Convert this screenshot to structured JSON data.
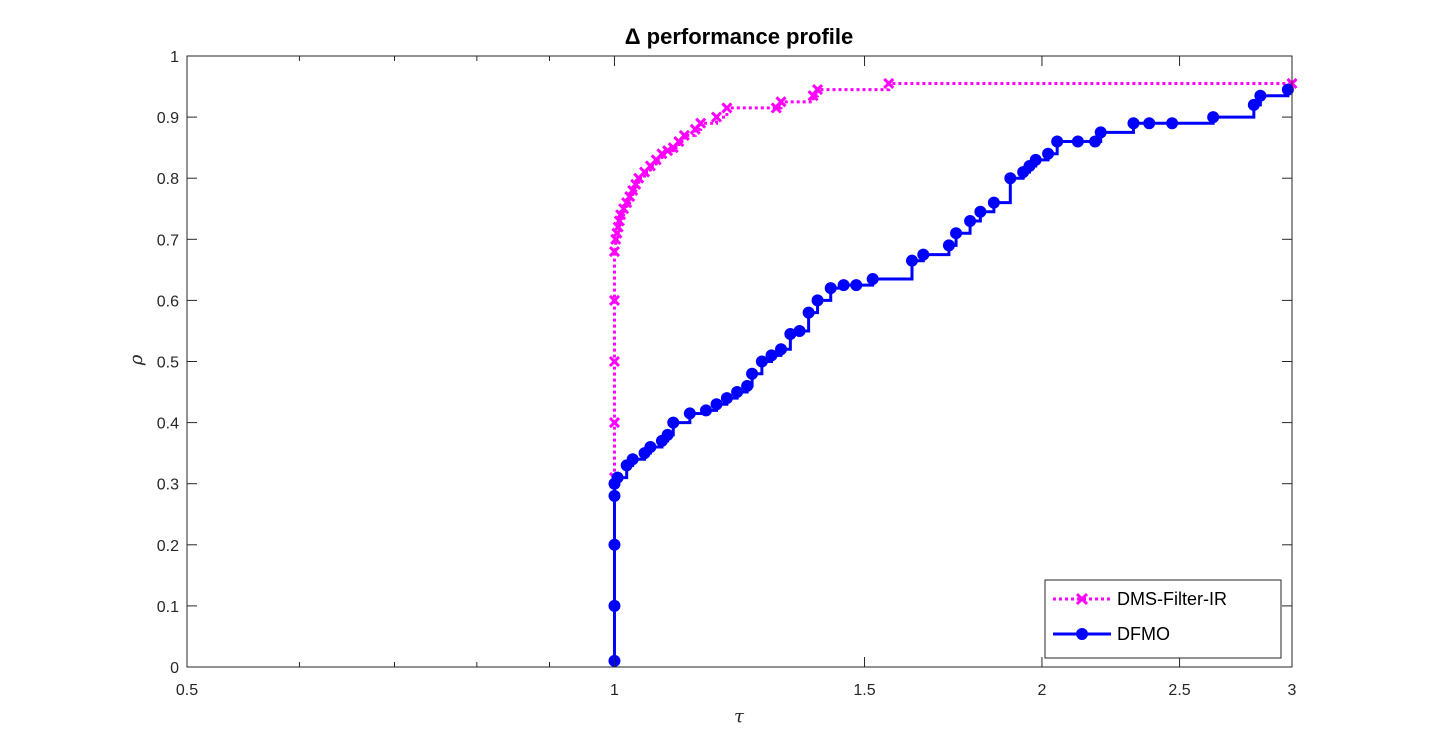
{
  "chart_data": {
    "type": "line",
    "title": "Δ performance profile",
    "xlabel": "τ",
    "ylabel": "ρ",
    "x_scale": "log2",
    "xlim": [
      0.5,
      3
    ],
    "ylim": [
      0,
      1
    ],
    "x_ticks": [
      0.5,
      1,
      1.5,
      2,
      2.5,
      3
    ],
    "x_tick_labels": [
      "0.5",
      "1",
      "1.5",
      "2",
      "2.5",
      "3"
    ],
    "y_ticks": [
      0,
      0.1,
      0.2,
      0.3,
      0.4,
      0.5,
      0.6,
      0.7,
      0.8,
      0.9,
      1
    ],
    "y_tick_labels": [
      "0",
      "0.1",
      "0.2",
      "0.3",
      "0.4",
      "0.5",
      "0.6",
      "0.7",
      "0.8",
      "0.9",
      "1"
    ],
    "grid": false,
    "legend_position": "bottom-right",
    "series": [
      {
        "name": "DMS-Filter-IR",
        "color": "#ff00ff",
        "line_style": "dotted",
        "marker": "x",
        "x": [
          1.0,
          1.0,
          1.0,
          1.0,
          1.0,
          1.002,
          1.004,
          1.006,
          1.008,
          1.01,
          1.015,
          1.02,
          1.025,
          1.03,
          1.035,
          1.04,
          1.05,
          1.06,
          1.07,
          1.08,
          1.09,
          1.1,
          1.11,
          1.12,
          1.14,
          1.15,
          1.18,
          1.2,
          1.3,
          1.31,
          1.38,
          1.39,
          1.56,
          3.0
        ],
        "y": [
          0.31,
          0.4,
          0.5,
          0.6,
          0.68,
          0.7,
          0.71,
          0.72,
          0.73,
          0.74,
          0.75,
          0.76,
          0.77,
          0.78,
          0.79,
          0.8,
          0.81,
          0.82,
          0.83,
          0.84,
          0.845,
          0.85,
          0.86,
          0.87,
          0.88,
          0.89,
          0.9,
          0.915,
          0.915,
          0.925,
          0.935,
          0.945,
          0.955,
          0.955
        ]
      },
      {
        "name": "DFMO",
        "color": "#0000ff",
        "line_style": "solid",
        "marker": "o",
        "x": [
          1.0,
          1.0,
          1.0,
          1.0,
          1.0,
          1.005,
          1.02,
          1.03,
          1.05,
          1.06,
          1.08,
          1.09,
          1.1,
          1.13,
          1.16,
          1.18,
          1.2,
          1.22,
          1.24,
          1.25,
          1.27,
          1.29,
          1.31,
          1.33,
          1.35,
          1.37,
          1.39,
          1.42,
          1.45,
          1.48,
          1.52,
          1.62,
          1.65,
          1.72,
          1.74,
          1.78,
          1.81,
          1.85,
          1.9,
          1.94,
          1.96,
          1.98,
          2.02,
          2.05,
          2.12,
          2.18,
          2.2,
          2.32,
          2.38,
          2.47,
          2.64,
          2.82,
          2.85,
          2.98
        ],
        "y": [
          0.01,
          0.1,
          0.2,
          0.28,
          0.3,
          0.31,
          0.33,
          0.34,
          0.35,
          0.36,
          0.37,
          0.38,
          0.4,
          0.415,
          0.42,
          0.43,
          0.44,
          0.45,
          0.46,
          0.48,
          0.5,
          0.51,
          0.52,
          0.545,
          0.55,
          0.58,
          0.6,
          0.62,
          0.625,
          0.625,
          0.635,
          0.665,
          0.675,
          0.69,
          0.71,
          0.73,
          0.745,
          0.76,
          0.8,
          0.81,
          0.82,
          0.83,
          0.84,
          0.86,
          0.86,
          0.86,
          0.875,
          0.89,
          0.89,
          0.89,
          0.9,
          0.92,
          0.935,
          0.945
        ]
      }
    ]
  }
}
